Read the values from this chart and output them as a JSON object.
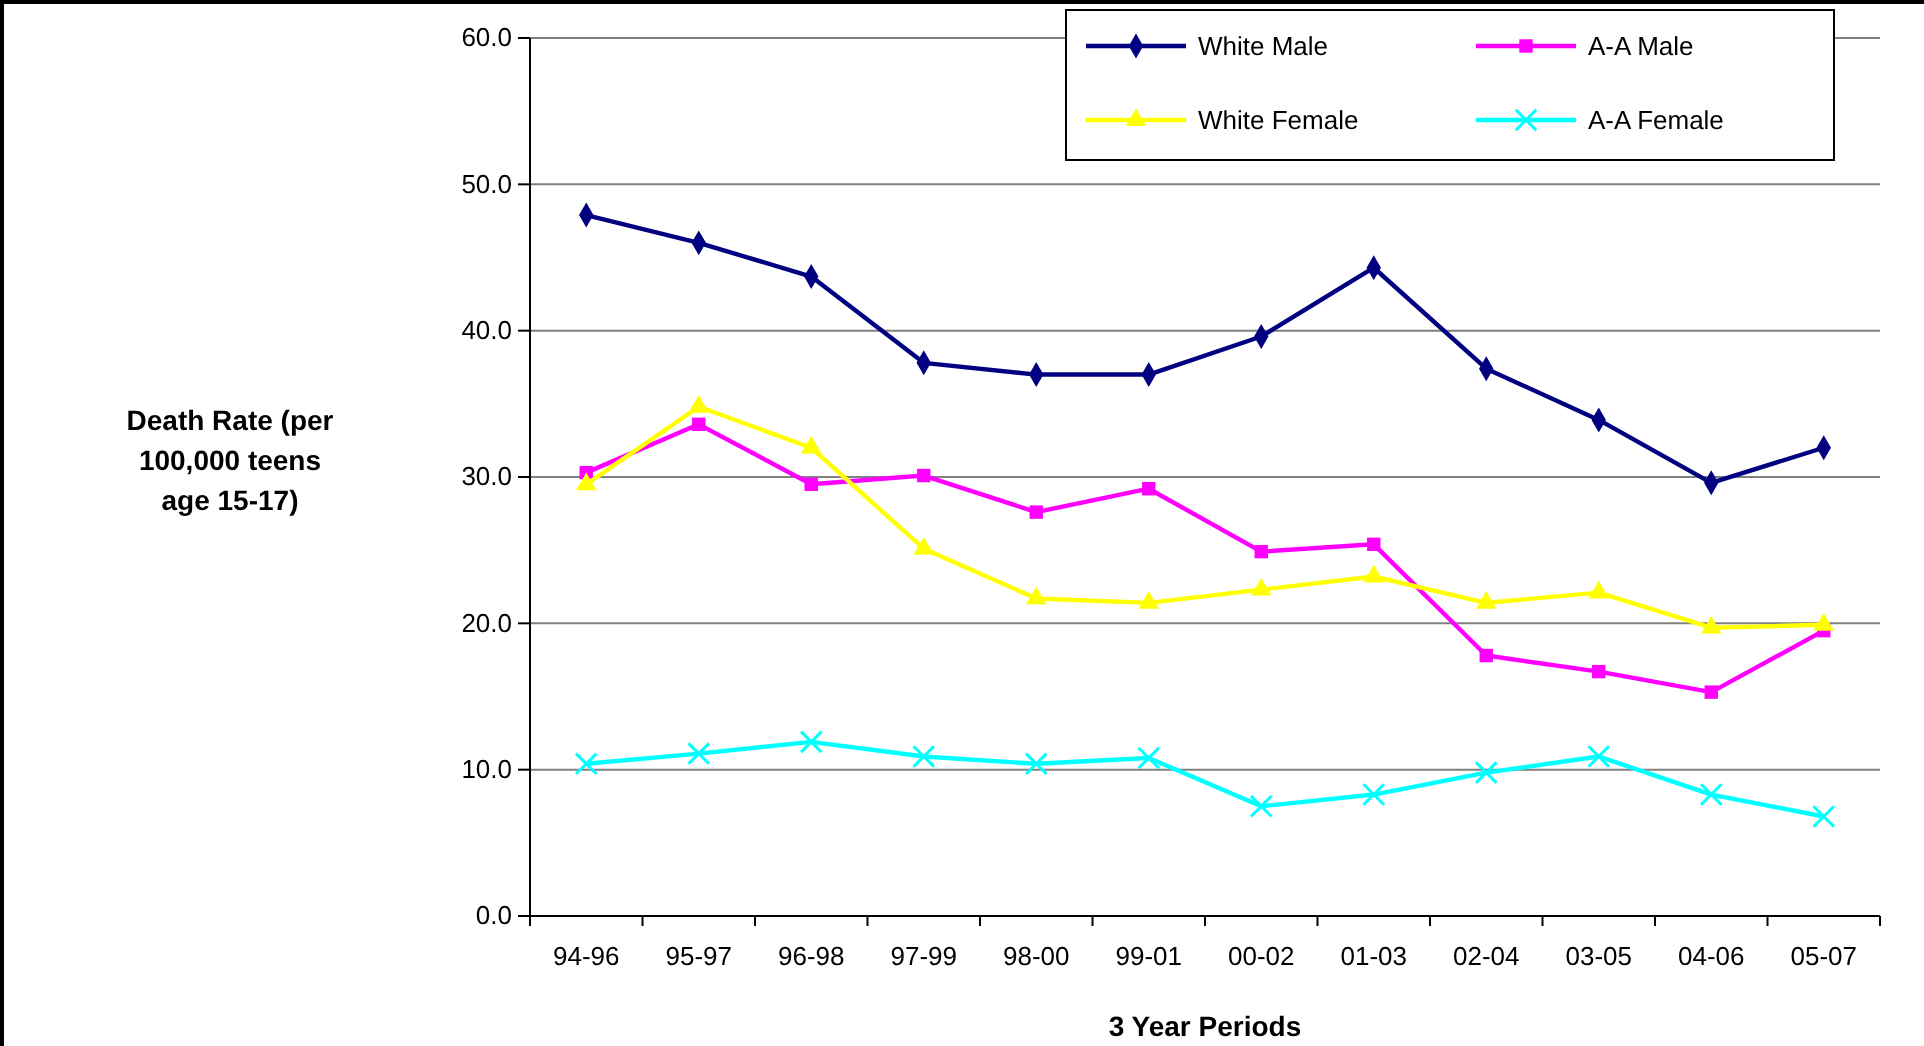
{
  "chart_data": {
    "type": "line",
    "xlabel": "3 Year Periods",
    "ylabel": "Death Rate (per 100,000 teens age 15-17)",
    "categories": [
      "94-96",
      "95-97",
      "96-98",
      "97-99",
      "98-00",
      "99-01",
      "00-02",
      "01-03",
      "02-04",
      "03-05",
      "04-06",
      "05-07"
    ],
    "ylim": [
      0,
      60
    ],
    "yticks": [
      {
        "value": 0,
        "label": "0.0"
      },
      {
        "value": 10,
        "label": "10.0"
      },
      {
        "value": 20,
        "label": "20.0"
      },
      {
        "value": 30,
        "label": "30.0"
      },
      {
        "value": 40,
        "label": "40.0"
      },
      {
        "value": 50,
        "label": "50.0"
      },
      {
        "value": 60,
        "label": "60.0"
      }
    ],
    "grid": "y",
    "legend": "top right",
    "line_style": "solid",
    "series": [
      {
        "name": "White Male",
        "color": "#000080",
        "marker": "diamond",
        "values": [
          47.9,
          46.0,
          43.7,
          37.8,
          37.0,
          37.0,
          39.6,
          44.3,
          37.4,
          33.9,
          29.6,
          32.0
        ]
      },
      {
        "name": "A-A Male",
        "color": "#ff00ff",
        "marker": "square",
        "values": [
          30.3,
          33.6,
          29.5,
          30.1,
          27.6,
          29.2,
          24.9,
          25.4,
          17.8,
          16.7,
          15.3,
          19.5
        ]
      },
      {
        "name": "White Female",
        "color": "#ffff00",
        "marker": "triangle",
        "values": [
          29.5,
          34.8,
          32.0,
          25.1,
          21.7,
          21.4,
          22.3,
          23.2,
          21.4,
          22.1,
          19.7,
          19.9
        ]
      },
      {
        "name": "A-A Female",
        "color": "#00ffff",
        "marker": "cross",
        "values": [
          10.4,
          11.1,
          11.9,
          10.9,
          10.4,
          10.8,
          7.5,
          8.3,
          9.8,
          10.9,
          8.3,
          6.8
        ]
      }
    ]
  }
}
